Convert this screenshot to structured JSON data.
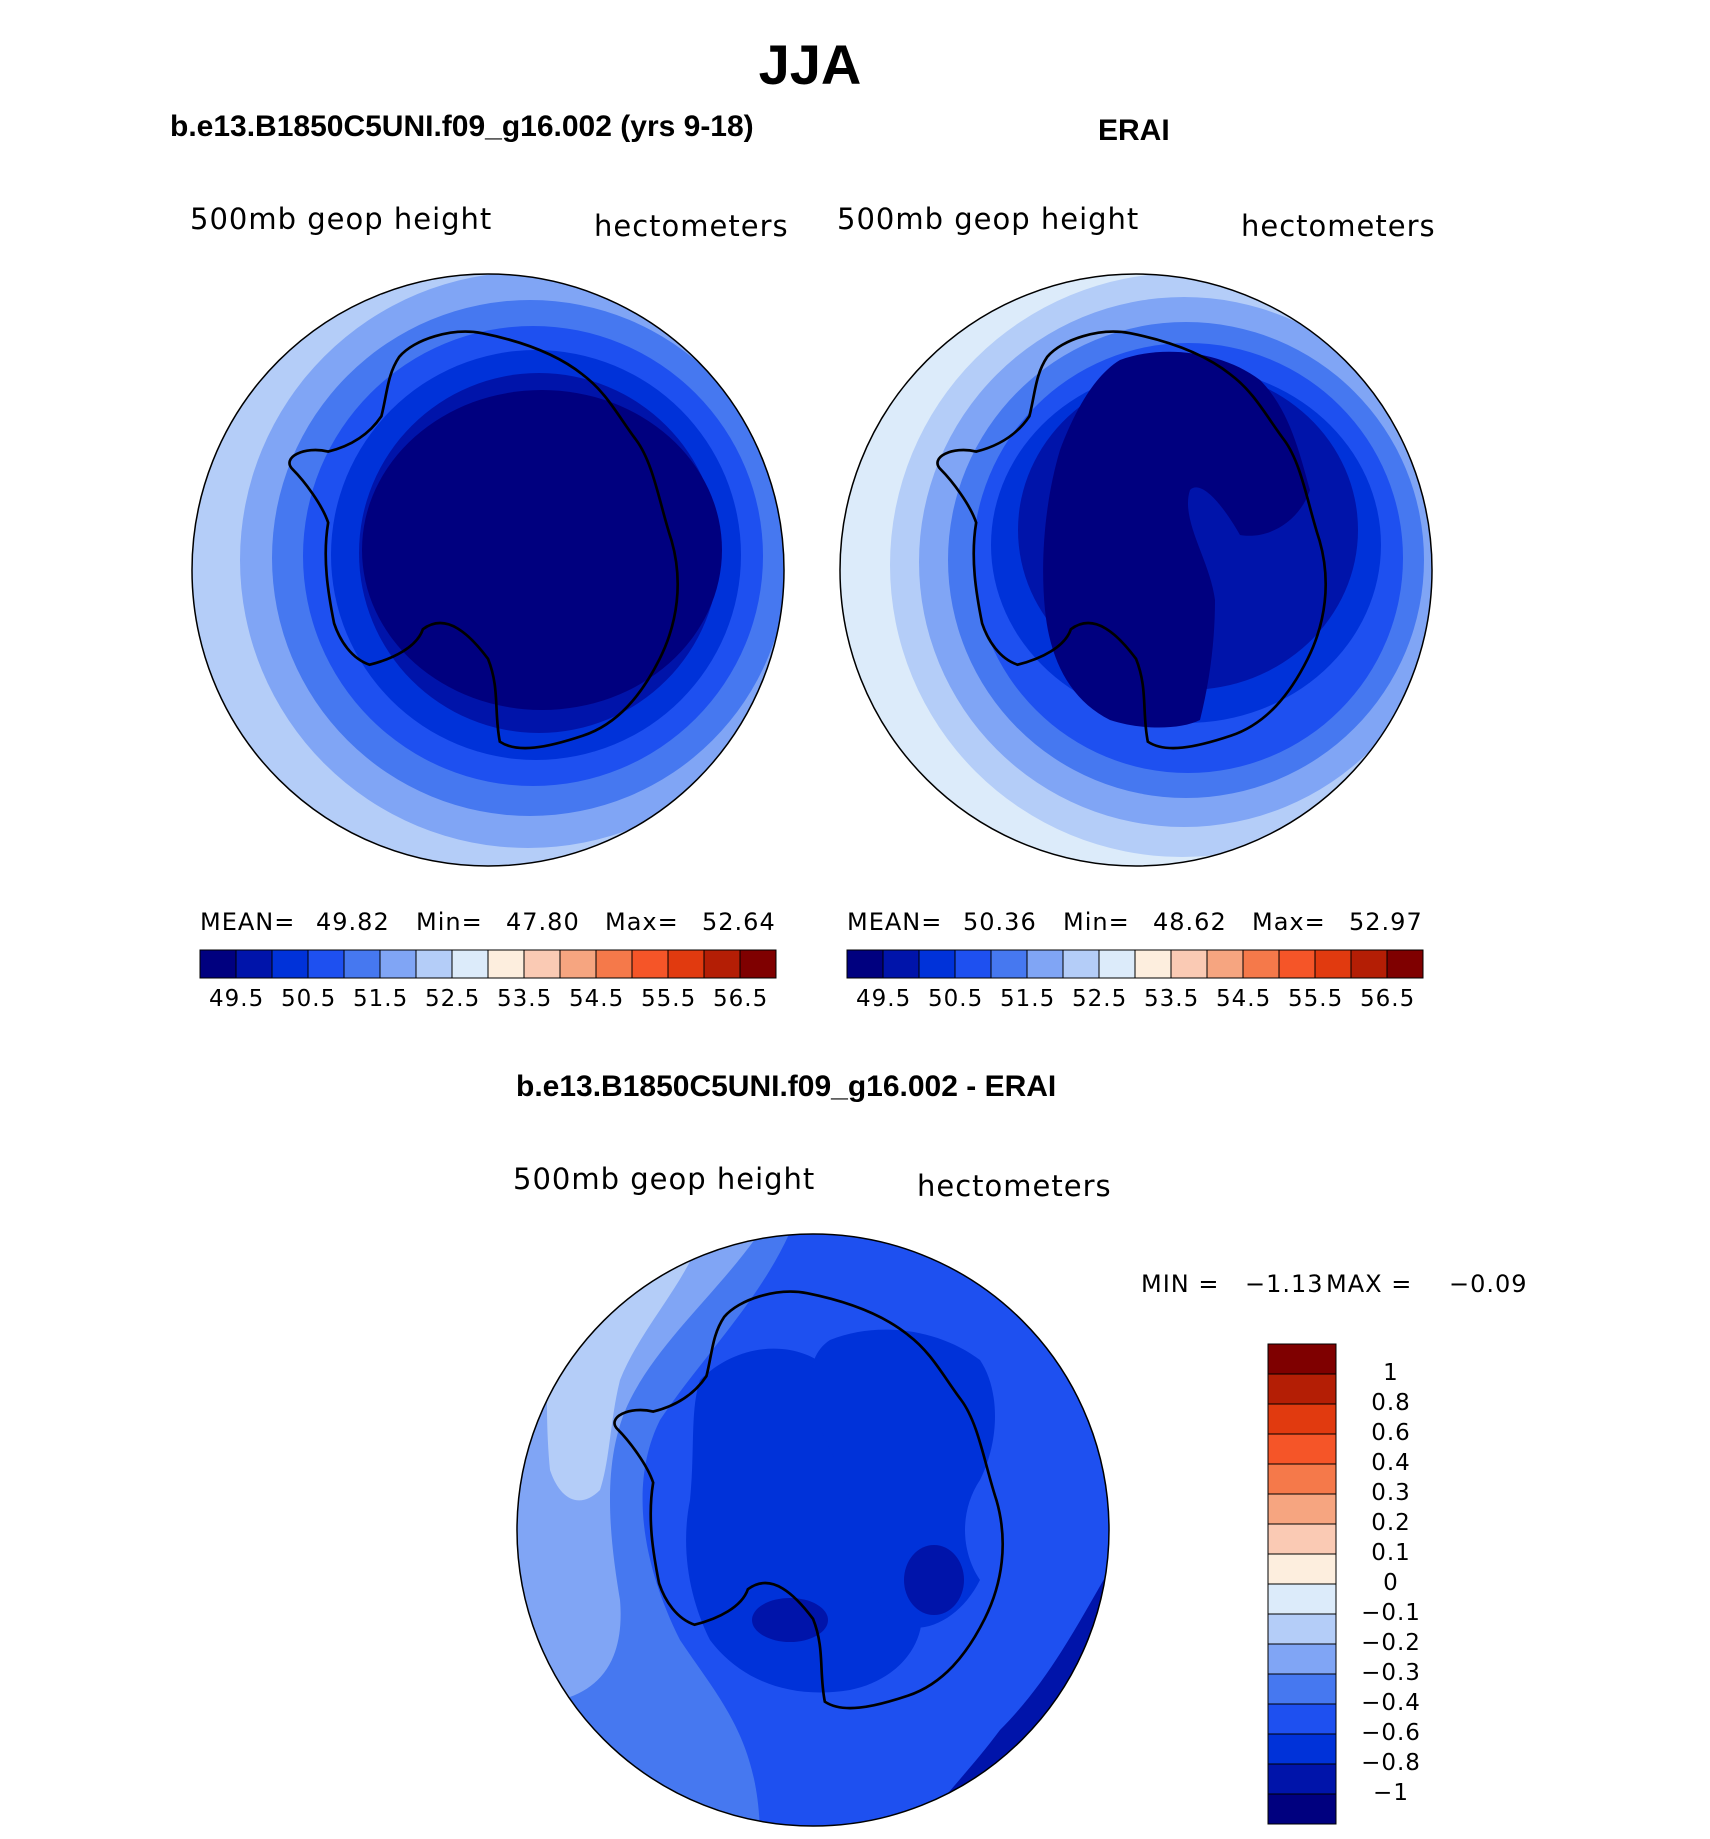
{
  "figure": {
    "title": "JJA",
    "panels": [
      {
        "id": "model",
        "title": "b.e13.B1850C5UNI.f09_g16.002 (yrs 9-18)",
        "variable": "500mb  geop  height",
        "units": "hectometers",
        "stats_text": {
          "mean_label": "MEAN=",
          "mean": "49.82",
          "min_label": "Min=",
          "min": "47.80",
          "max_label": "Max=",
          "max": "52.64"
        }
      },
      {
        "id": "obs",
        "title": "ERAI",
        "variable": "500mb  geop  height",
        "units": "hectometers",
        "stats_text": {
          "mean_label": "MEAN=",
          "mean": "50.36",
          "min_label": "Min=",
          "min": "48.62",
          "max_label": "Max=",
          "max": "52.97"
        }
      },
      {
        "id": "diff",
        "title": "b.e13.B1850C5UNI.f09_g16.002 - ERAI",
        "variable": "500mb  geop  height",
        "units": "hectometers",
        "stats_text": {
          "min_label": "MIN =",
          "min": "−1.13",
          "max_label": "MAX =",
          "max": "−0.09"
        }
      }
    ],
    "colorbar_main": {
      "tick_labels": [
        "49.5",
        "50.5",
        "51.5",
        "52.5",
        "53.5",
        "54.5",
        "55.5",
        "56.5"
      ],
      "colors": [
        "#00007f",
        "#0014aa",
        "#0032d9",
        "#1e50f0",
        "#4678f0",
        "#80a5f5",
        "#b4cdf8",
        "#dcebfa",
        "#fdeede",
        "#facab4",
        "#f6a580",
        "#f5794a",
        "#f55528",
        "#e13a0f",
        "#b41e05",
        "#7f0000"
      ]
    },
    "colorbar_diff": {
      "tick_labels": [
        "1",
        "0.8",
        "0.6",
        "0.4",
        "0.3",
        "0.2",
        "0.1",
        "0",
        "−0.1",
        "−0.2",
        "−0.3",
        "−0.4",
        "−0.6",
        "−0.8",
        "−1"
      ],
      "colors": [
        "#7f0000",
        "#b41e05",
        "#e13a0f",
        "#f55528",
        "#f5794a",
        "#f6a580",
        "#facab4",
        "#fdeede",
        "#dcebfa",
        "#b4cdf8",
        "#80a5f5",
        "#4678f0",
        "#1e50f0",
        "#0032d9",
        "#0014aa",
        "#00007f"
      ]
    }
  },
  "chart_data": [
    {
      "type": "heatmap",
      "title": "b.e13.B1850C5UNI.f09_g16.002 (yrs 9-18)",
      "variable": "500mb geop height",
      "units": "hectometers",
      "projection": "south polar stereographic",
      "mean": 49.82,
      "min": 47.8,
      "max": 52.64,
      "contour_levels": [
        49.5,
        50.0,
        50.5,
        51.0,
        51.5,
        52.0,
        52.5,
        53.0,
        53.5,
        54.0,
        54.5,
        55.0,
        55.5,
        56.0,
        56.5
      ]
    },
    {
      "type": "heatmap",
      "title": "ERAI",
      "variable": "500mb geop height",
      "units": "hectometers",
      "projection": "south polar stereographic",
      "mean": 50.36,
      "min": 48.62,
      "max": 52.97,
      "contour_levels": [
        49.5,
        50.0,
        50.5,
        51.0,
        51.5,
        52.0,
        52.5,
        53.0,
        53.5,
        54.0,
        54.5,
        55.0,
        55.5,
        56.0,
        56.5
      ]
    },
    {
      "type": "heatmap",
      "title": "b.e13.B1850C5UNI.f09_g16.002 - ERAI",
      "variable": "500mb geop height",
      "units": "hectometers",
      "projection": "south polar stereographic",
      "min": -1.13,
      "max": -0.09,
      "contour_levels": [
        -1,
        -0.8,
        -0.6,
        -0.4,
        -0.3,
        -0.2,
        -0.1,
        0,
        0.1,
        0.2,
        0.3,
        0.4,
        0.6,
        0.8,
        1
      ]
    }
  ]
}
